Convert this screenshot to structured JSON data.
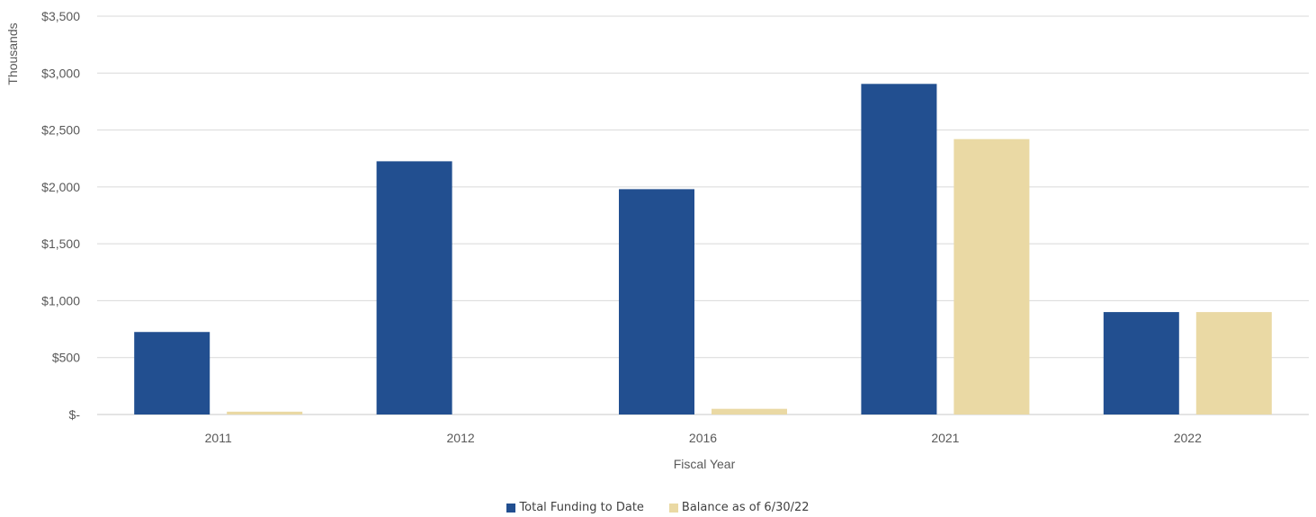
{
  "chart_data": {
    "type": "bar",
    "xlabel": "Fiscal Year",
    "ylabel": "Thousands",
    "categories": [
      "2011",
      "2012",
      "2016",
      "2021",
      "2022"
    ],
    "series": [
      {
        "name": "Total Funding to Date",
        "color": "#224f90",
        "values": [
          725,
          2225,
          1980,
          2905,
          900
        ]
      },
      {
        "name": "Balance as of 6/30/22",
        "color": "#ead9a4",
        "values": [
          25,
          0,
          50,
          2420,
          900
        ]
      }
    ],
    "ylim": [
      0,
      3500
    ],
    "yticks": [
      0,
      500,
      1000,
      1500,
      2000,
      2500,
      3000,
      3500
    ],
    "ytick_labels": [
      "$-",
      "$500",
      "$1,000",
      "$1,500",
      "$2,000",
      "$2,500",
      "$3,000",
      "$3,500"
    ],
    "grid": true,
    "legend_position": "bottom"
  }
}
